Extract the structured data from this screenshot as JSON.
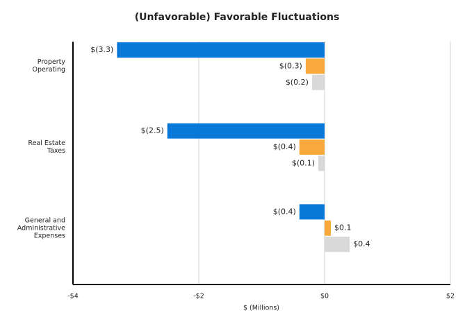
{
  "chart_data": {
    "type": "bar",
    "orientation": "horizontal",
    "title": "(Unfavorable) Favorable Fluctuations",
    "x_label": "$ (Millions)",
    "categories": [
      "Property\nOperating",
      "Real Estate\nTaxes",
      "General and\nAdministrative\nExpenses"
    ],
    "series": [
      {
        "color": "#0a78d7",
        "values": [
          -3.3,
          -2.5,
          -0.4
        ],
        "value_labels": [
          "$(3.3)",
          "$(2.5)",
          "$(0.4)"
        ]
      },
      {
        "color": "#f7a93b",
        "values": [
          -0.3,
          -0.4,
          0.1
        ],
        "value_labels": [
          "$(0.3)",
          "$(0.4)",
          "$0.1"
        ]
      },
      {
        "color": "#d9d9d9",
        "values": [
          -0.2,
          -0.1,
          0.4
        ],
        "value_labels": [
          "$(0.2)",
          "$(0.1)",
          "$0.4"
        ]
      }
    ],
    "xlim": [
      -4,
      2
    ],
    "xticks": [
      {
        "value": -4,
        "label": "-$4"
      },
      {
        "value": -2,
        "label": "-$2"
      },
      {
        "value": 0,
        "label": "$0"
      },
      {
        "value": 2,
        "label": "$2"
      }
    ],
    "grid": true
  }
}
